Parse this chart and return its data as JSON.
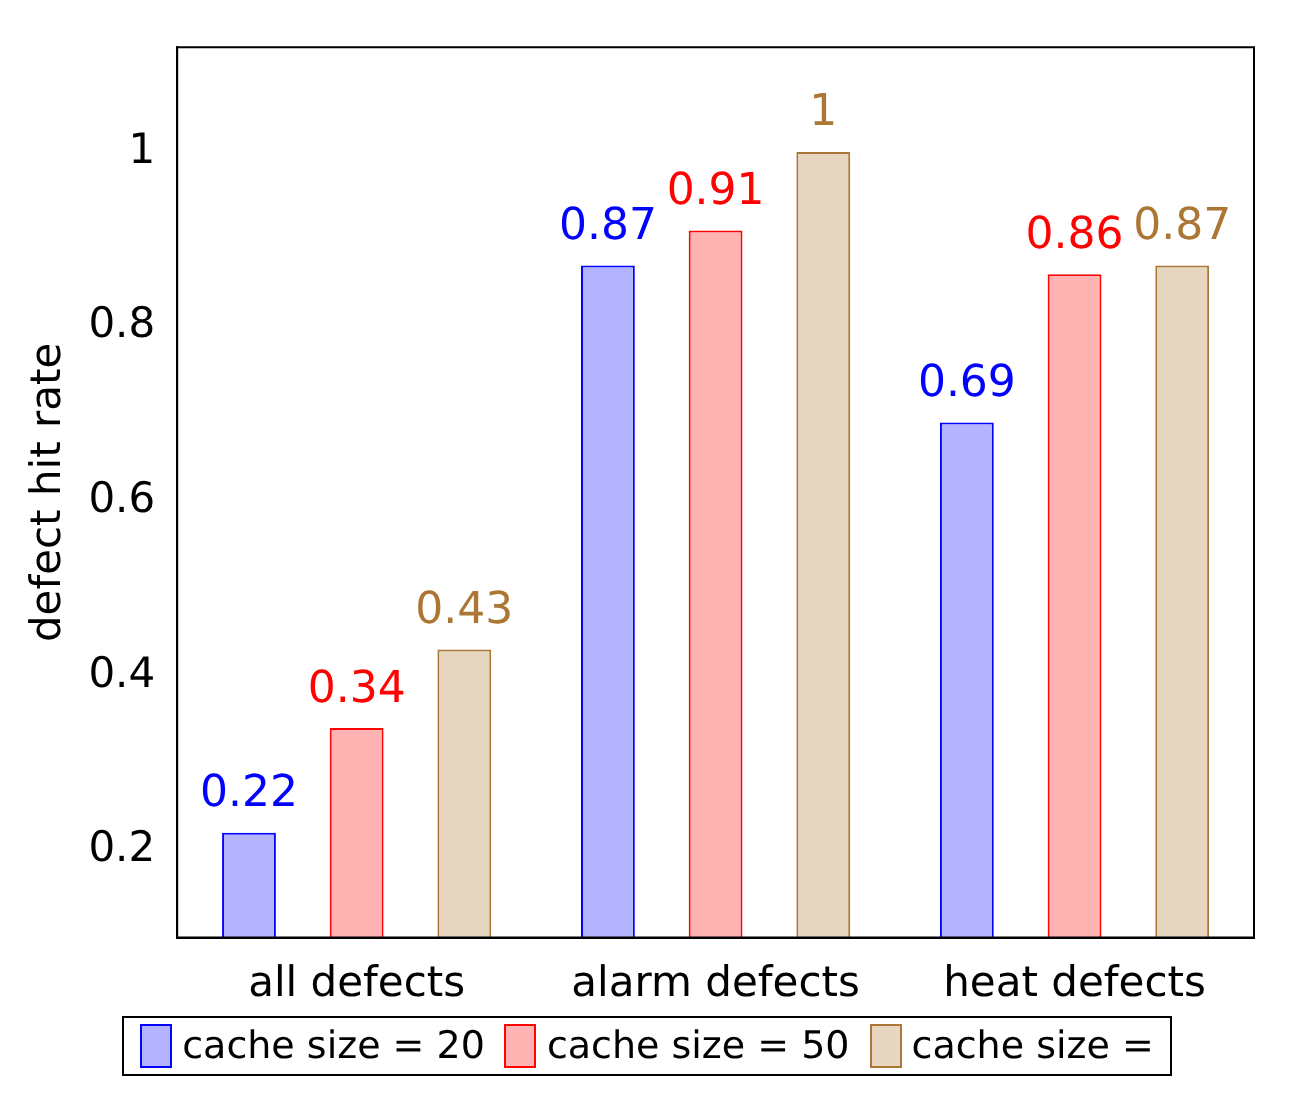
{
  "chart_data": {
    "type": "bar",
    "ylabel": "defect hit rate",
    "categories": [
      "all defects",
      "alarm defects",
      "heat defects"
    ],
    "series": [
      {
        "name": "cache size = 20",
        "color": "#b3b3ff",
        "values": [
          0.22,
          0.87,
          0.69
        ]
      },
      {
        "name": "cache size = 50",
        "color": "#ffb3b3",
        "values": [
          0.34,
          0.91,
          0.86
        ]
      },
      {
        "name": "cache size =",
        "color": "#e6d6c2",
        "values": [
          0.43,
          1,
          0.87
        ]
      }
    ],
    "ylim": [
      0.1,
      1.12
    ],
    "yticks": [
      0.2,
      0.4,
      0.6,
      0.8,
      1
    ],
    "grid": false,
    "legend": "bottom",
    "data_labels": true
  }
}
